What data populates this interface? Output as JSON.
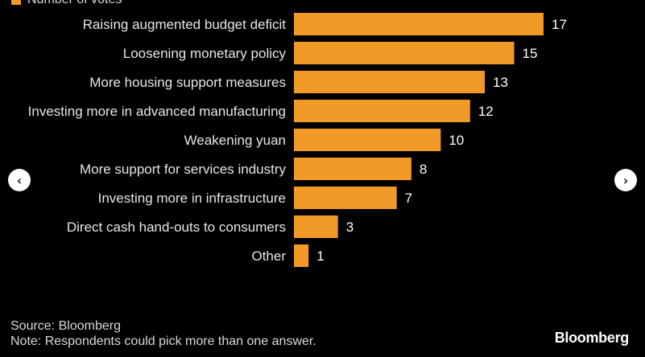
{
  "legend": {
    "label": "Number of votes",
    "color": "#f29a27"
  },
  "chart_data": {
    "type": "bar",
    "orientation": "horizontal",
    "categories": [
      "Raising augmented budget deficit",
      "Loosening monetary policy",
      "More housing support measures",
      "Investing more in advanced manufacturing",
      "Weakening yuan",
      "More support for services industry",
      "Investing more in infrastructure",
      "Direct cash hand-outs to consumers",
      "Other"
    ],
    "series": [
      {
        "name": "Number of votes",
        "values": [
          17,
          15,
          13,
          12,
          10,
          8,
          7,
          3,
          1
        ],
        "color": "#f29a27"
      }
    ],
    "xlim": [
      0,
      17
    ],
    "grid": false,
    "legend_position": "top-left"
  },
  "navigation": {
    "prev_icon": "chevron-left-icon",
    "next_icon": "chevron-right-icon",
    "prev_glyph": "‹",
    "next_glyph": "›"
  },
  "footer": {
    "source": "Source: Bloomberg",
    "note": "Note: Respondents could pick more than one answer."
  },
  "brand": "Bloomberg"
}
